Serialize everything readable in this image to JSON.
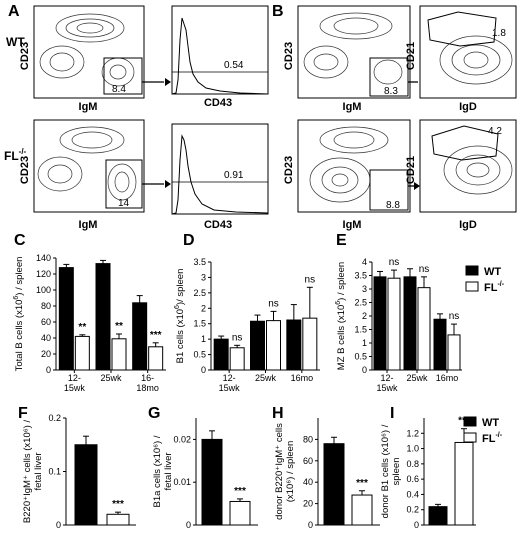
{
  "panel_letters": [
    "A",
    "B",
    "C",
    "D",
    "E",
    "F",
    "G",
    "H",
    "I"
  ],
  "flow": {
    "row_labels": {
      "wt": "WT",
      "fl": "FL",
      "fl_sup": "-/-"
    },
    "A": {
      "wt": {
        "dot_x": "IgM",
        "dot_y": "CD23",
        "gate_value": "8.4",
        "hist_x": "CD43",
        "hist_value": "0.54"
      },
      "fl": {
        "dot_x": "IgM",
        "dot_y": "CD23",
        "gate_value": "14",
        "hist_x": "CD43",
        "hist_value": "0.91"
      }
    },
    "B": {
      "wt": {
        "dot_x": "IgM",
        "dot_y": "CD23",
        "gate_value": "8.3",
        "dot2_x": "IgD",
        "dot2_y": "CD21",
        "gate2_value": "1.8"
      },
      "fl": {
        "dot_x": "IgM",
        "dot_y": "CD23",
        "gate_value": "8.8",
        "dot2_x": "IgD",
        "dot2_y": "CD21",
        "gate2_value": "4.2"
      }
    }
  },
  "legend": {
    "wt": "WT",
    "fl": "FL",
    "fl_sup": "-/-",
    "wt_color": "#000000",
    "fl_color": "#ffffff"
  },
  "chart_data": [
    {
      "panel": "C",
      "type": "bar",
      "ylabel": "Total B cells (x10^6) / spean",
      "ylabel_parts": [
        "Total B cells (x10",
        "6",
        ") / spleen"
      ],
      "ylim": [
        0,
        140
      ],
      "yticks": [
        0,
        20,
        40,
        60,
        80,
        100,
        120,
        140
      ],
      "categories": [
        "12-15wk",
        "25wk",
        "16-18mo"
      ],
      "category_lines": [
        [
          "12-",
          "15wk"
        ],
        [
          "25wk"
        ],
        [
          "16-",
          "18mo"
        ]
      ],
      "series": [
        {
          "name": "WT",
          "values": [
            128,
            133,
            84
          ],
          "errors": [
            4,
            4,
            9
          ]
        },
        {
          "name": "FL-/-",
          "values": [
            42,
            39,
            29
          ],
          "errors": [
            2,
            6,
            5
          ]
        }
      ],
      "annotations": [
        "**",
        "**",
        "***"
      ]
    },
    {
      "panel": "D",
      "type": "bar",
      "ylabel_parts": [
        "B1 cells  (x10",
        "6",
        ")/ spleen"
      ],
      "ylim": [
        0,
        3.5
      ],
      "yticks": [
        0,
        0.5,
        1,
        1.5,
        2,
        2.5,
        3,
        3.5
      ],
      "categories": [
        "12-15wk",
        "25wk",
        "16mo"
      ],
      "category_lines": [
        [
          "12-",
          "15wk"
        ],
        [
          "25wk"
        ],
        [
          "16mo"
        ]
      ],
      "series": [
        {
          "name": "WT",
          "values": [
            1.0,
            1.58,
            1.62
          ],
          "errors": [
            0.1,
            0.2,
            0.5
          ]
        },
        {
          "name": "FL-/-",
          "values": [
            0.72,
            1.6,
            1.68
          ],
          "errors": [
            0.08,
            0.3,
            1.0
          ]
        }
      ],
      "annotations": [
        "ns",
        "ns",
        "ns"
      ]
    },
    {
      "panel": "E",
      "type": "bar",
      "ylabel_parts": [
        "MZ B cells (x10",
        "6",
        ") / spleen"
      ],
      "ylim": [
        0,
        4
      ],
      "yticks": [
        0,
        0.5,
        1,
        1.5,
        2,
        2.5,
        3,
        3.5,
        4
      ],
      "categories": [
        "12-15wk",
        "25wk",
        "16mo"
      ],
      "category_lines": [
        [
          "12-",
          "15wk"
        ],
        [
          "25wk"
        ],
        [
          "16mo"
        ]
      ],
      "series": [
        {
          "name": "WT",
          "values": [
            3.45,
            3.45,
            1.88
          ],
          "errors": [
            0.2,
            0.3,
            0.2
          ]
        },
        {
          "name": "FL-/-",
          "values": [
            3.4,
            3.05,
            1.3
          ],
          "errors": [
            0.3,
            0.4,
            0.4
          ]
        }
      ],
      "annotations": [
        "ns",
        "ns",
        "ns"
      ]
    },
    {
      "panel": "F",
      "type": "bar",
      "ylabel_lines": [
        "B220⁺IgM⁺ cells (x10⁶) /",
        "fetal liver"
      ],
      "ylim": [
        0,
        0.2
      ],
      "yticks": [
        0,
        0.1,
        0.2
      ],
      "categories": [
        "WT",
        "FL-/-"
      ],
      "values": [
        0.15,
        0.02
      ],
      "errors": [
        0.016,
        0.004
      ],
      "annotations": [
        "***"
      ]
    },
    {
      "panel": "G",
      "type": "bar",
      "ylabel_lines": [
        "B1a cells (x10⁶) /",
        "fetal liver"
      ],
      "ylim": [
        0,
        0.025
      ],
      "yticks": [
        0,
        0.01,
        0.02
      ],
      "categories": [
        "WT",
        "FL-/-"
      ],
      "values": [
        0.02,
        0.0055
      ],
      "errors": [
        0.002,
        0.0006
      ],
      "annotations": [
        "***"
      ]
    },
    {
      "panel": "H",
      "type": "bar",
      "ylabel_lines": [
        "donor B220⁺IgM⁺ cells",
        "(x10⁶) / spleen"
      ],
      "ylim": [
        0,
        100
      ],
      "yticks": [
        0,
        20,
        40,
        60,
        80
      ],
      "categories": [
        "WT",
        "FL-/-"
      ],
      "values": [
        76,
        28
      ],
      "errors": [
        6,
        4
      ],
      "annotations": [
        "***"
      ]
    },
    {
      "panel": "I",
      "type": "bar",
      "ylabel_lines": [
        "donor B1 cells (x10⁶) /",
        "spleen"
      ],
      "ylim": [
        0,
        1.4
      ],
      "yticks": [
        0,
        0.2,
        0.4,
        0.6,
        0.8,
        1.0,
        1.2
      ],
      "categories": [
        "WT",
        "FL-/-"
      ],
      "values": [
        0.24,
        1.08
      ],
      "errors": [
        0.03,
        0.18
      ],
      "annotations": [
        "***"
      ]
    }
  ]
}
